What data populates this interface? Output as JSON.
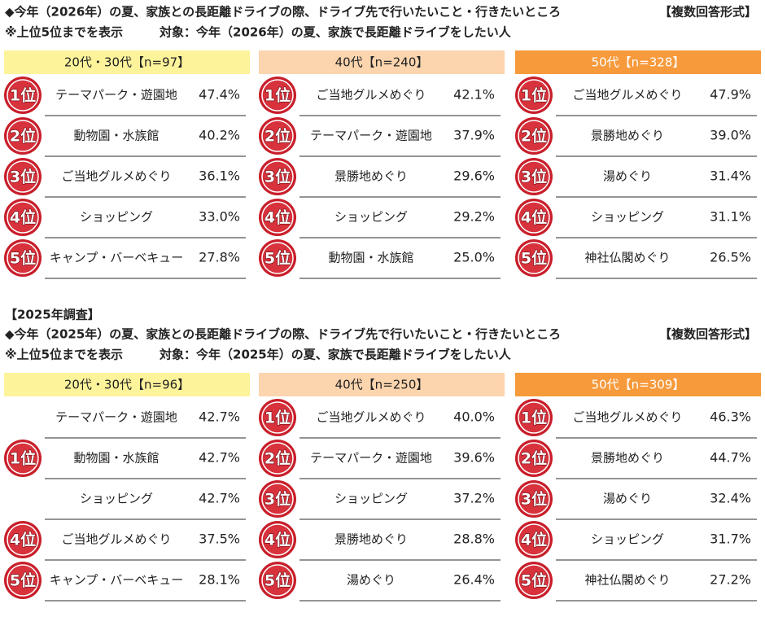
{
  "sections": [
    {
      "title": "◆今年（2026年）の夏、家族との長距離ドライブの際、ドライブ先で行いたいこと・行きたいところ",
      "format": "【複数回答形式】",
      "note": "※上位5位までを表示",
      "target": "対象：今年（2026年）の夏、家族で長距離ドライブをしたい人",
      "groups": [
        {
          "header": "20代・30代【n=97】",
          "rows": [
            {
              "rank": "1位",
              "item": "テーマパーク・遊園地",
              "pct": "47.4%"
            },
            {
              "rank": "2位",
              "item": "動物園・水族館",
              "pct": "40.2%"
            },
            {
              "rank": "3位",
              "item": "ご当地グルメめぐり",
              "pct": "36.1%"
            },
            {
              "rank": "4位",
              "item": "ショッピング",
              "pct": "33.0%"
            },
            {
              "rank": "5位",
              "item": "キャンプ・バーベキュー",
              "pct": "27.8%"
            }
          ]
        },
        {
          "header": "40代【n=240】",
          "rows": [
            {
              "rank": "1位",
              "item": "ご当地グルメめぐり",
              "pct": "42.1%"
            },
            {
              "rank": "2位",
              "item": "テーマパーク・遊園地",
              "pct": "37.9%"
            },
            {
              "rank": "3位",
              "item": "景勝地めぐり",
              "pct": "29.6%"
            },
            {
              "rank": "4位",
              "item": "ショッピング",
              "pct": "29.2%"
            },
            {
              "rank": "5位",
              "item": "動物園・水族館",
              "pct": "25.0%"
            }
          ]
        },
        {
          "header": "50代【n=328】",
          "rows": [
            {
              "rank": "1位",
              "item": "ご当地グルメめぐり",
              "pct": "47.9%"
            },
            {
              "rank": "2位",
              "item": "景勝地めぐり",
              "pct": "39.0%"
            },
            {
              "rank": "3位",
              "item": "湯めぐり",
              "pct": "31.4%"
            },
            {
              "rank": "4位",
              "item": "ショッピング",
              "pct": "31.1%"
            },
            {
              "rank": "5位",
              "item": "神社仏閣めぐり",
              "pct": "26.5%"
            }
          ]
        }
      ]
    },
    {
      "heading": "【2025年調査】",
      "title": "◆今年（2025年）の夏、家族との長距離ドライブの際、ドライブ先で行いたいこと・行きたいところ",
      "format": "【複数回答形式】",
      "note": "※上位5位までを表示",
      "target": "対象：今年（2025年）の夏、家族で長距離ドライブをしたい人",
      "groups": [
        {
          "header": "20代・30代【n=96】",
          "rows": [
            {
              "rank": "1位",
              "item": "テーマパーク・遊園地",
              "pct": "42.7%"
            },
            {
              "item": "動物園・水族館",
              "pct": "42.7%"
            },
            {
              "item": "ショッピング",
              "pct": "42.7%"
            },
            {
              "rank": "4位",
              "item": "ご当地グルメめぐり",
              "pct": "37.5%"
            },
            {
              "rank": "5位",
              "item": "キャンプ・バーベキュー",
              "pct": "28.1%"
            }
          ]
        },
        {
          "header": "40代【n=250】",
          "rows": [
            {
              "rank": "1位",
              "item": "ご当地グルメめぐり",
              "pct": "40.0%"
            },
            {
              "rank": "2位",
              "item": "テーマパーク・遊園地",
              "pct": "39.6%"
            },
            {
              "rank": "3位",
              "item": "ショッピング",
              "pct": "37.2%"
            },
            {
              "rank": "4位",
              "item": "景勝地めぐり",
              "pct": "28.8%"
            },
            {
              "rank": "5位",
              "item": "湯めぐり",
              "pct": "26.4%"
            }
          ]
        },
        {
          "header": "50代【n=309】",
          "rows": [
            {
              "rank": "1位",
              "item": "ご当地グルメめぐり",
              "pct": "46.3%"
            },
            {
              "rank": "2位",
              "item": "景勝地めぐり",
              "pct": "44.7%"
            },
            {
              "rank": "3位",
              "item": "湯めぐり",
              "pct": "32.4%"
            },
            {
              "rank": "4位",
              "item": "ショッピング",
              "pct": "31.7%"
            },
            {
              "rank": "5位",
              "item": "神社仏閣めぐり",
              "pct": "27.2%"
            }
          ]
        }
      ]
    }
  ]
}
